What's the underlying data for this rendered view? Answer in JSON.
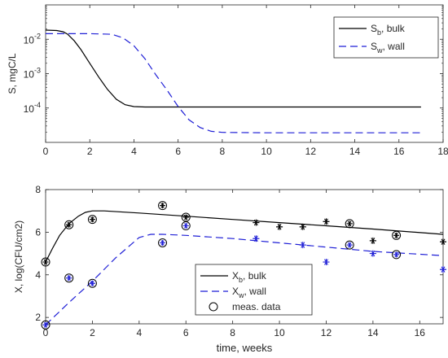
{
  "chart_data": [
    {
      "type": "line",
      "ylabel": "S, mgC/L",
      "yscale": "log",
      "xlim": [
        0,
        18
      ],
      "ylim": [
        1e-05,
        0.1
      ],
      "xticks": [
        0,
        2,
        4,
        6,
        8,
        10,
        12,
        14,
        16,
        18
      ],
      "yticks": [
        0.0001,
        0.001,
        0.01
      ],
      "ytick_labels": [
        "10",
        "10",
        "10"
      ],
      "ytick_exps": [
        "-4",
        "-3",
        "-2"
      ],
      "legend_position": "top-right",
      "series": [
        {
          "name_main": "S",
          "name_sub": "b",
          "name_rest": ", bulk",
          "color": "#000000",
          "style": "solid",
          "x": [
            0,
            0.5,
            0.8,
            1.0,
            1.3,
            1.6,
            2.0,
            2.4,
            2.8,
            3.2,
            3.6,
            4.0,
            4.5,
            5,
            10,
            17
          ],
          "y": [
            0.0185,
            0.018,
            0.0165,
            0.014,
            0.009,
            0.005,
            0.002,
            0.0008,
            0.00035,
            0.00018,
            0.000125,
            0.00011,
            0.000107,
            0.000107,
            0.000107,
            0.000107
          ]
        },
        {
          "name_main": "S",
          "name_sub": "w",
          "name_rest": ", wall",
          "color": "#1f1fd6",
          "style": "dashed",
          "x": [
            0,
            2,
            3,
            3.5,
            4.0,
            4.5,
            5.0,
            5.5,
            6.0,
            6.5,
            7.0,
            7.5,
            8,
            10,
            17
          ],
          "y": [
            0.0145,
            0.0145,
            0.014,
            0.011,
            0.0065,
            0.0027,
            0.0009,
            0.00033,
            0.00011,
            4.5e-05,
            2.7e-05,
            2.1e-05,
            1.95e-05,
            1.9e-05,
            1.9e-05
          ]
        }
      ]
    },
    {
      "type": "line",
      "xlabel": "time, weeks",
      "ylabel": "X, log(CFU/cm2)",
      "xlim": [
        0,
        17
      ],
      "ylim": [
        1.7,
        8
      ],
      "xticks": [
        0,
        2,
        4,
        6,
        8,
        10,
        12,
        14,
        16
      ],
      "yticks": [
        2,
        4,
        6,
        8
      ],
      "legend_position": "bottom-center",
      "series": [
        {
          "name_main": "X",
          "name_sub": "b",
          "name_rest": ", bulk",
          "color": "#000000",
          "style": "solid",
          "x": [
            0,
            0.3,
            0.6,
            1.0,
            1.4,
            1.7,
            2.0,
            2.5,
            4,
            6,
            8,
            10,
            12,
            14,
            17
          ],
          "y": [
            4.6,
            5.25,
            5.85,
            6.4,
            6.75,
            6.93,
            7.0,
            7.0,
            6.9,
            6.75,
            6.6,
            6.45,
            6.3,
            6.15,
            5.9
          ]
        },
        {
          "name_main": "X",
          "name_sub": "w",
          "name_rest": ", wall",
          "color": "#1f1fd6",
          "style": "dashed",
          "x": [
            0,
            1,
            2,
            3,
            4,
            4.5,
            5,
            6,
            8,
            10,
            12,
            14,
            17
          ],
          "y": [
            1.65,
            2.7,
            3.7,
            4.8,
            5.75,
            5.9,
            5.9,
            5.85,
            5.7,
            5.5,
            5.3,
            5.1,
            4.9
          ]
        },
        {
          "name_main": "meas. data",
          "name_sub": "",
          "name_rest": "",
          "color": "#000000",
          "style": "marker-circle"
        }
      ],
      "measured": {
        "circled": [
          {
            "x": 0,
            "y": 4.6,
            "color": "#000000"
          },
          {
            "x": 1,
            "y": 6.35,
            "color": "#000000"
          },
          {
            "x": 2,
            "y": 6.6,
            "color": "#000000"
          },
          {
            "x": 5,
            "y": 7.25,
            "color": "#000000"
          },
          {
            "x": 6,
            "y": 6.7,
            "color": "#000000"
          },
          {
            "x": 13,
            "y": 6.4,
            "color": "#000000"
          },
          {
            "x": 15,
            "y": 5.85,
            "color": "#000000"
          },
          {
            "x": 0,
            "y": 1.65,
            "color": "#1f1fd6"
          },
          {
            "x": 1,
            "y": 3.85,
            "color": "#1f1fd6"
          },
          {
            "x": 2,
            "y": 3.6,
            "color": "#1f1fd6"
          },
          {
            "x": 5,
            "y": 5.5,
            "color": "#1f1fd6"
          },
          {
            "x": 6,
            "y": 6.3,
            "color": "#1f1fd6"
          },
          {
            "x": 13,
            "y": 5.4,
            "color": "#1f1fd6"
          },
          {
            "x": 15,
            "y": 4.95,
            "color": "#1f1fd6"
          }
        ],
        "stars": [
          {
            "x": 9,
            "y": 6.45,
            "color": "#000000"
          },
          {
            "x": 10,
            "y": 6.25,
            "color": "#000000"
          },
          {
            "x": 11,
            "y": 6.25,
            "color": "#000000"
          },
          {
            "x": 12,
            "y": 6.5,
            "color": "#000000"
          },
          {
            "x": 14,
            "y": 5.6,
            "color": "#000000"
          },
          {
            "x": 17,
            "y": 5.55,
            "color": "#000000"
          },
          {
            "x": 9,
            "y": 5.7,
            "color": "#1f1fd6"
          },
          {
            "x": 11,
            "y": 5.4,
            "color": "#1f1fd6"
          },
          {
            "x": 12,
            "y": 4.6,
            "color": "#1f1fd6"
          },
          {
            "x": 14,
            "y": 5.0,
            "color": "#1f1fd6"
          },
          {
            "x": 17,
            "y": 4.25,
            "color": "#1f1fd6"
          }
        ]
      }
    }
  ]
}
